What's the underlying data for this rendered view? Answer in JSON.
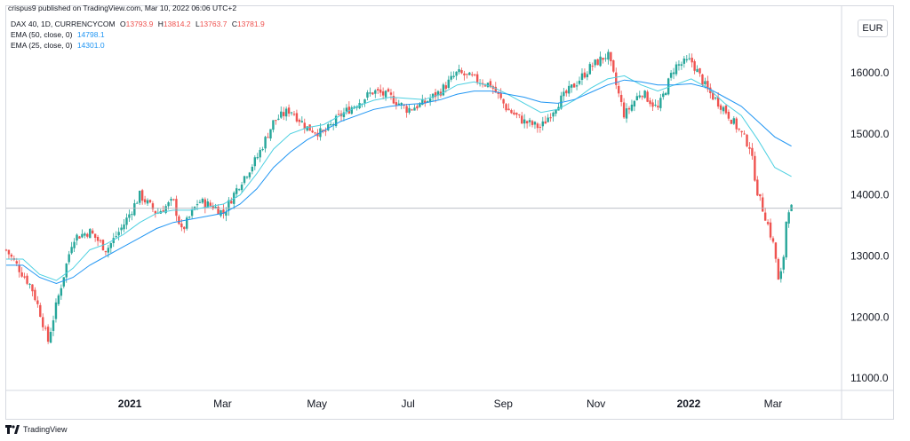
{
  "header": {
    "published": "crispus9 published on TradingView.com, Mar 10, 2022 06:06 UTC+2"
  },
  "legend": {
    "symbol": "DAX 40, 1D, CURRENCYCOM",
    "ohlc": [
      {
        "label": "O",
        "value": "13793.9"
      },
      {
        "label": "H",
        "value": "13814.2"
      },
      {
        "label": "L",
        "value": "13763.7"
      },
      {
        "label": "C",
        "value": "13781.9"
      }
    ],
    "ema50_label": "EMA (50, close, 0)",
    "ema50_value": "14798.1",
    "ema25_label": "EMA (25, close, 0)",
    "ema25_value": "14301.0"
  },
  "currency": "EUR",
  "footer": {
    "brand": "TradingView"
  },
  "colors": {
    "up": "#26a69a",
    "down": "#ef5350",
    "ema": "#2196f3",
    "ema2": "#4dd0e1",
    "priceLine": "#b2b5be"
  },
  "chart_data": {
    "type": "line",
    "title": "DAX 40, 1D, CURRENCYCOM",
    "ylim": [
      10800,
      16900
    ],
    "y_ticks": [
      11000.0,
      12000.0,
      13000.0,
      14000.0,
      15000.0,
      16000.0
    ],
    "y_tick_labels": [
      "11000.0",
      "12000.0",
      "13000.0",
      "14000.0",
      "15000.0",
      "16000.0"
    ],
    "x_ticks": [
      {
        "label": "2021",
        "t": 0.148,
        "year": true
      },
      {
        "label": "Mar",
        "t": 0.259,
        "year": false
      },
      {
        "label": "May",
        "t": 0.372,
        "year": false
      },
      {
        "label": "Jul",
        "t": 0.481,
        "year": false
      },
      {
        "label": "Sep",
        "t": 0.595,
        "year": false
      },
      {
        "label": "Nov",
        "t": 0.706,
        "year": false
      },
      {
        "label": "2022",
        "t": 0.817,
        "year": true
      },
      {
        "label": "Mar",
        "t": 0.918,
        "year": false
      }
    ],
    "last_price": 13781.9,
    "series": [
      {
        "name": "DAX 40 close",
        "t": [
          0.0,
          0.02,
          0.03,
          0.04,
          0.05,
          0.06,
          0.08,
          0.1,
          0.12,
          0.14,
          0.16,
          0.18,
          0.2,
          0.21,
          0.23,
          0.25,
          0.26,
          0.28,
          0.3,
          0.32,
          0.34,
          0.36,
          0.38,
          0.4,
          0.42,
          0.44,
          0.46,
          0.48,
          0.5,
          0.52,
          0.54,
          0.56,
          0.58,
          0.6,
          0.62,
          0.64,
          0.66,
          0.68,
          0.7,
          0.72,
          0.74,
          0.76,
          0.78,
          0.8,
          0.82,
          0.84,
          0.86,
          0.88,
          0.89,
          0.9,
          0.91,
          0.92,
          0.925,
          0.93,
          0.935,
          0.94
        ],
        "values": [
          13100,
          12700,
          12500,
          12100,
          11600,
          12200,
          13300,
          13400,
          13100,
          13500,
          14000,
          13700,
          13900,
          13400,
          13900,
          13800,
          13700,
          14200,
          14600,
          15200,
          15400,
          15100,
          15000,
          15300,
          15500,
          15700,
          15600,
          15400,
          15500,
          15700,
          16000,
          15900,
          15800,
          15400,
          15200,
          15100,
          15500,
          15800,
          16100,
          16300,
          15300,
          15700,
          15400,
          16100,
          16200,
          15700,
          15400,
          15000,
          14800,
          14000,
          13600,
          13100,
          12500,
          12900,
          13800,
          13782
        ]
      },
      {
        "name": "EMA (25, close, 0)",
        "t": [
          0.0,
          0.02,
          0.04,
          0.06,
          0.08,
          0.1,
          0.12,
          0.14,
          0.16,
          0.18,
          0.2,
          0.22,
          0.24,
          0.26,
          0.28,
          0.3,
          0.32,
          0.34,
          0.36,
          0.38,
          0.4,
          0.42,
          0.44,
          0.46,
          0.48,
          0.5,
          0.52,
          0.54,
          0.56,
          0.58,
          0.6,
          0.62,
          0.64,
          0.66,
          0.68,
          0.7,
          0.72,
          0.74,
          0.76,
          0.78,
          0.8,
          0.82,
          0.84,
          0.86,
          0.88,
          0.9,
          0.92,
          0.94
        ],
        "values": [
          12950,
          12950,
          12700,
          12600,
          12800,
          13100,
          13200,
          13350,
          13550,
          13700,
          13750,
          13750,
          13800,
          13850,
          14000,
          14350,
          14750,
          15000,
          15100,
          15150,
          15300,
          15450,
          15550,
          15600,
          15580,
          15560,
          15650,
          15800,
          15850,
          15780,
          15650,
          15500,
          15350,
          15400,
          15550,
          15750,
          15900,
          15950,
          15800,
          15700,
          15800,
          15900,
          15750,
          15500,
          15300,
          14900,
          14450,
          14301
        ]
      },
      {
        "name": "EMA (50, close, 0)",
        "t": [
          0.0,
          0.02,
          0.04,
          0.06,
          0.08,
          0.1,
          0.12,
          0.14,
          0.16,
          0.18,
          0.2,
          0.22,
          0.24,
          0.26,
          0.28,
          0.3,
          0.32,
          0.34,
          0.36,
          0.38,
          0.4,
          0.42,
          0.44,
          0.46,
          0.48,
          0.5,
          0.52,
          0.54,
          0.56,
          0.58,
          0.6,
          0.62,
          0.64,
          0.66,
          0.68,
          0.7,
          0.72,
          0.74,
          0.76,
          0.78,
          0.8,
          0.82,
          0.84,
          0.86,
          0.88,
          0.9,
          0.92,
          0.94
        ],
        "values": [
          12850,
          12850,
          12650,
          12550,
          12650,
          12850,
          13000,
          13150,
          13300,
          13450,
          13550,
          13600,
          13650,
          13700,
          13850,
          14100,
          14450,
          14700,
          14900,
          15050,
          15200,
          15300,
          15400,
          15450,
          15480,
          15500,
          15560,
          15650,
          15700,
          15700,
          15650,
          15600,
          15520,
          15500,
          15560,
          15680,
          15800,
          15880,
          15850,
          15800,
          15800,
          15820,
          15750,
          15600,
          15450,
          15200,
          14950,
          14798
        ]
      }
    ]
  }
}
